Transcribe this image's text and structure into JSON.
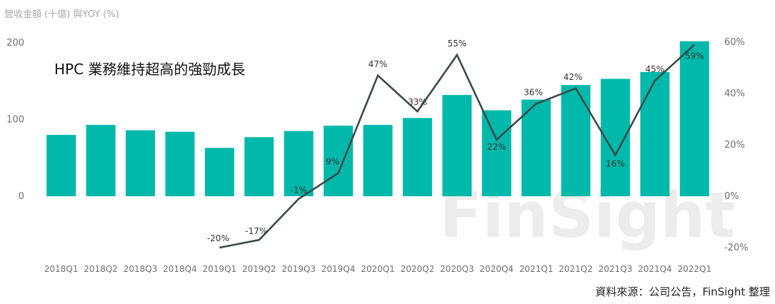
{
  "chart_data": {
    "type": "bar+line",
    "title": "",
    "axis_title": "營收金額 (十億) 與YOY (%)",
    "annotation": "HPC 業務維持超高的強勁成長",
    "source": "資料來源：公司公告，FinSight 整理",
    "watermark": "FinSight",
    "categories": [
      "2018Q1",
      "2018Q2",
      "2018Q3",
      "2018Q4",
      "2019Q1",
      "2019Q2",
      "2019Q3",
      "2019Q4",
      "2020Q1",
      "2020Q2",
      "2020Q3",
      "2020Q4",
      "2021Q1",
      "2021Q2",
      "2021Q3",
      "2021Q4",
      "2022Q1"
    ],
    "series": [
      {
        "type": "bar",
        "axis": "left",
        "values": [
          80,
          93,
          86,
          84,
          63,
          77,
          85,
          92,
          93,
          102,
          132,
          112,
          126,
          145,
          153,
          162,
          202
        ]
      },
      {
        "type": "line",
        "axis": "right",
        "values": [
          null,
          null,
          null,
          null,
          -20,
          -17,
          -1,
          9,
          47,
          33,
          55,
          22,
          36,
          42,
          16,
          45,
          59
        ],
        "labels": [
          "",
          "",
          "",
          "",
          "-20%",
          "-17%",
          "-1%",
          "9%",
          "47%",
          "33%",
          "55%",
          "22%",
          "36%",
          "42%",
          "16%",
          "45%",
          "59%"
        ]
      }
    ],
    "left_axis": {
      "ticks": [
        "0",
        "100",
        "200"
      ],
      "tick_values": [
        0,
        100,
        200
      ],
      "ylim": [
        -68,
        202
      ]
    },
    "right_axis": {
      "ticks": [
        "-20%",
        "0%",
        "20%",
        "40%",
        "60%"
      ],
      "tick_values": [
        -20,
        0,
        20,
        40,
        60
      ],
      "ylim": [
        -20,
        60
      ]
    },
    "grid": false,
    "colors": {
      "bar": "#00b9aa",
      "line": "#3b4a4b"
    }
  }
}
